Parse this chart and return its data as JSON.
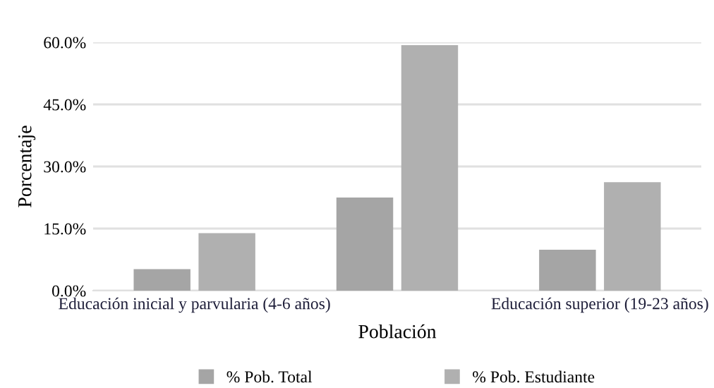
{
  "chart_data": {
    "type": "bar",
    "xlabel": "Población",
    "ylabel": "Porcentaje",
    "categories": [
      "Educación inicial y parvularia (4-6 años)",
      null,
      "Educación superior (19-23 años)"
    ],
    "series": [
      {
        "name": "% Pob. Total",
        "color": "#a5a5a5",
        "values": [
          5.2,
          22.5,
          9.9
        ]
      },
      {
        "name": "% Pob. Estudiante",
        "color": "#b0b0b0",
        "values": [
          13.9,
          59.3,
          26.2
        ]
      }
    ],
    "ylim": [
      0,
      60
    ],
    "yticks": [
      {
        "value": 0,
        "label": "0.0%"
      },
      {
        "value": 15,
        "label": "15.0%"
      },
      {
        "value": 30,
        "label": "30.0%"
      },
      {
        "value": 45,
        "label": "45.0%"
      },
      {
        "value": 60,
        "label": "60.0%"
      }
    ],
    "grid": "y",
    "legend": "bottom"
  }
}
